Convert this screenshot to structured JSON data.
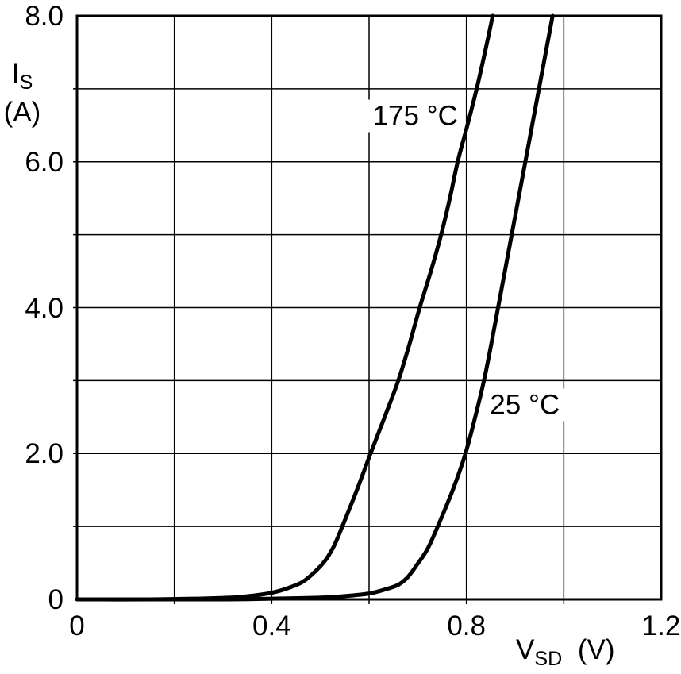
{
  "chart_data": {
    "type": "line",
    "xlabel": {
      "main": "V",
      "sub": "SD",
      "unit": "(V)"
    },
    "ylabel": {
      "main": "I",
      "sub": "S",
      "unit": "(A)"
    },
    "xlim": [
      0,
      1.2
    ],
    "ylim": [
      0,
      8.0
    ],
    "grid": true,
    "x_gridlines": [
      0.2,
      0.4,
      0.6,
      0.8,
      1.0
    ],
    "y_gridlines": [
      1,
      2,
      3,
      4,
      5,
      6,
      7
    ],
    "x_ticks": [
      {
        "value": 0,
        "label": "0"
      },
      {
        "value": 0.4,
        "label": "0.4"
      },
      {
        "value": 0.8,
        "label": "0.8"
      },
      {
        "value": 1.2,
        "label": "1.2"
      }
    ],
    "y_ticks": [
      {
        "value": 0,
        "label": "0"
      },
      {
        "value": 2,
        "label": "2.0"
      },
      {
        "value": 4,
        "label": "4.0"
      },
      {
        "value": 6,
        "label": "6.0"
      },
      {
        "value": 8,
        "label": "8.0"
      }
    ],
    "line_color": "#000000",
    "background": "#ffffff",
    "legend_position": "inline-labels",
    "series": [
      {
        "name": "175 °C",
        "label_anchor": {
          "v": 0.695,
          "i": 6.63
        },
        "points": [
          [
            0.0,
            0.0
          ],
          [
            0.15,
            0.0
          ],
          [
            0.25,
            0.01
          ],
          [
            0.3,
            0.02
          ],
          [
            0.33,
            0.03
          ],
          [
            0.36,
            0.05
          ],
          [
            0.4,
            0.09
          ],
          [
            0.44,
            0.17
          ],
          [
            0.47,
            0.27
          ],
          [
            0.506,
            0.5
          ],
          [
            0.527,
            0.72
          ],
          [
            0.545,
            1.0
          ],
          [
            0.575,
            1.5
          ],
          [
            0.603,
            2.0
          ],
          [
            0.632,
            2.5
          ],
          [
            0.66,
            3.0
          ],
          [
            0.683,
            3.5
          ],
          [
            0.704,
            4.0
          ],
          [
            0.727,
            4.5
          ],
          [
            0.748,
            5.0
          ],
          [
            0.766,
            5.5
          ],
          [
            0.782,
            6.0
          ],
          [
            0.802,
            6.5
          ],
          [
            0.821,
            7.0
          ],
          [
            0.838,
            7.5
          ],
          [
            0.854,
            8.0
          ]
        ]
      },
      {
        "name": "25 °C",
        "label_anchor": {
          "v": 0.92,
          "i": 2.67
        },
        "points": [
          [
            0.0,
            0.0
          ],
          [
            0.3,
            0.0
          ],
          [
            0.4,
            0.01
          ],
          [
            0.48,
            0.02
          ],
          [
            0.52,
            0.03
          ],
          [
            0.56,
            0.05
          ],
          [
            0.6,
            0.08
          ],
          [
            0.63,
            0.13
          ],
          [
            0.66,
            0.2
          ],
          [
            0.68,
            0.31
          ],
          [
            0.7,
            0.49
          ],
          [
            0.72,
            0.69
          ],
          [
            0.741,
            1.0
          ],
          [
            0.772,
            1.5
          ],
          [
            0.798,
            2.0
          ],
          [
            0.818,
            2.5
          ],
          [
            0.836,
            3.0
          ],
          [
            0.851,
            3.5
          ],
          [
            0.865,
            4.0
          ],
          [
            0.879,
            4.5
          ],
          [
            0.893,
            5.0
          ],
          [
            0.907,
            5.5
          ],
          [
            0.921,
            6.0
          ],
          [
            0.935,
            6.5
          ],
          [
            0.949,
            7.0
          ],
          [
            0.963,
            7.5
          ],
          [
            0.977,
            8.0
          ]
        ]
      }
    ]
  }
}
